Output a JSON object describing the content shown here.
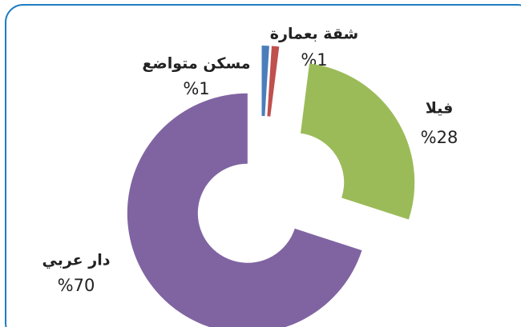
{
  "chart_data": {
    "type": "donut",
    "categories": [
      "مسكن متواضع",
      "شقة بعمارة",
      "فيلا",
      "دار عربي"
    ],
    "values": [
      1,
      1,
      28,
      70
    ],
    "value_labels": [
      "%1",
      "%1",
      "%28",
      "%70"
    ],
    "colors": [
      "#4a7ebb",
      "#c0504d",
      "#9bbb59",
      "#8064a2"
    ]
  }
}
